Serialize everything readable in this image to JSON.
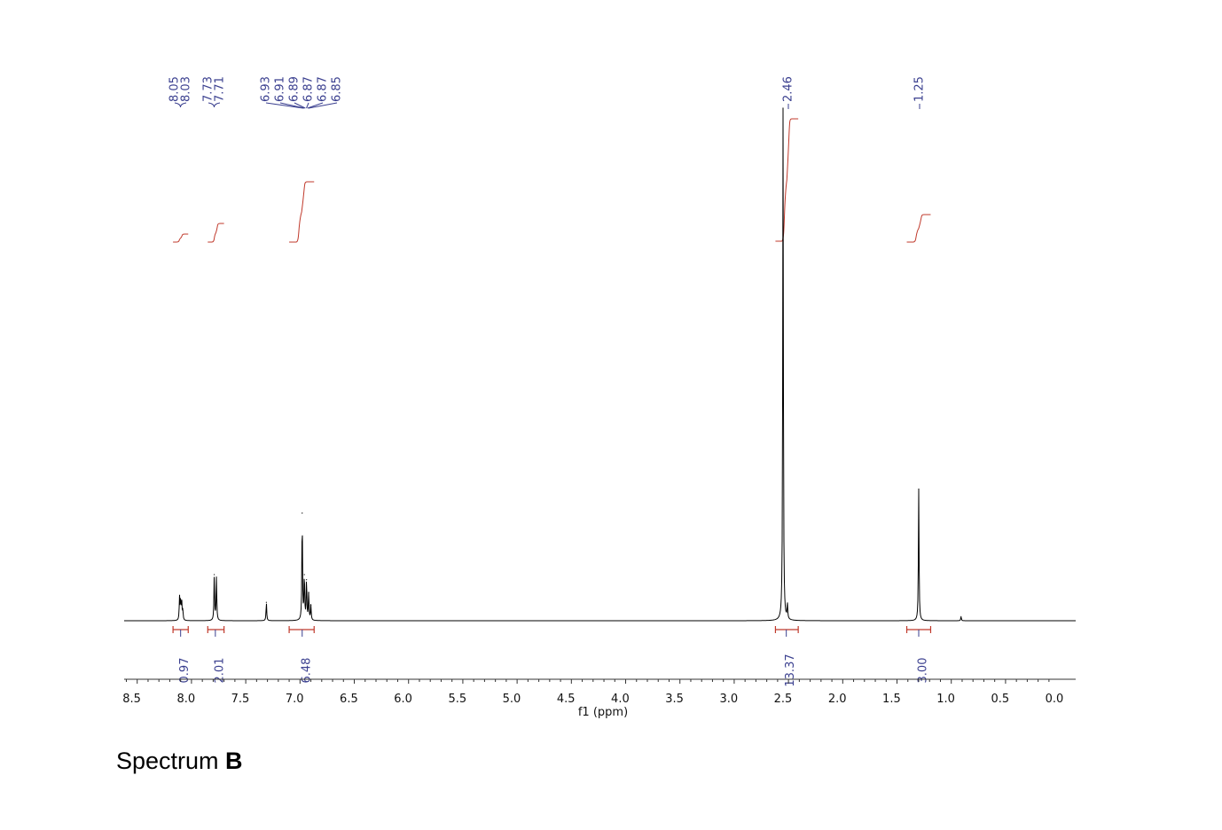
{
  "caption": {
    "prefix": "Spectrum ",
    "letter": "B"
  },
  "chart_data": {
    "type": "line",
    "xlabel": "f1 (ppm)",
    "xlim": [
      8.55,
      -0.05
    ],
    "x_reversed": true,
    "ticks": [
      "8.5",
      "8.0",
      "7.5",
      "7.0",
      "6.5",
      "6.0",
      "5.5",
      "5.0",
      "4.5",
      "4.0",
      "3.5",
      "3.0",
      "2.5",
      "2.0",
      "1.5",
      "1.0",
      "0.5",
      "0.0"
    ],
    "grid": false,
    "peak_groups": [
      {
        "labels": [
          "8.05",
          "8.03"
        ],
        "shifts": [
          8.05,
          8.03
        ],
        "bracket": "curly"
      },
      {
        "labels": [
          "7.73",
          "7.71"
        ],
        "shifts": [
          7.73,
          7.71
        ],
        "bracket": "curly"
      },
      {
        "labels": [
          "6.93",
          "6.91",
          "6.89",
          "6.87",
          "6.87",
          "6.85"
        ],
        "shifts": [
          6.93,
          6.91,
          6.89,
          6.87,
          6.87,
          6.85
        ],
        "bracket": "fan"
      },
      {
        "labels": [
          "2.46"
        ],
        "shifts": [
          2.46
        ],
        "bracket": "single"
      },
      {
        "labels": [
          "1.25"
        ],
        "shifts": [
          1.25
        ],
        "bracket": "single"
      }
    ],
    "integrals": [
      {
        "from": 8.12,
        "to": 7.98,
        "value": "0.97",
        "center": 8.05
      },
      {
        "from": 7.8,
        "to": 7.65,
        "value": "2.01",
        "center": 7.73
      },
      {
        "from": 7.05,
        "to": 6.82,
        "value": "6.48",
        "center": 6.93
      },
      {
        "from": 2.57,
        "to": 2.36,
        "value": "13.37",
        "center": 2.47
      },
      {
        "from": 1.36,
        "to": 1.14,
        "value": "3.00",
        "center": 1.25
      }
    ],
    "peaks": [
      {
        "ppm": 8.06,
        "height": 0.045
      },
      {
        "ppm": 8.05,
        "height": 0.04
      },
      {
        "ppm": 8.04,
        "height": 0.035
      },
      {
        "ppm": 8.03,
        "height": 0.02
      },
      {
        "ppm": 7.74,
        "height": 0.09
      },
      {
        "ppm": 7.72,
        "height": 0.085
      },
      {
        "ppm": 7.26,
        "height": 0.036
      },
      {
        "ppm": 6.93,
        "height": 0.21
      },
      {
        "ppm": 6.91,
        "height": 0.09
      },
      {
        "ppm": 6.89,
        "height": 0.08
      },
      {
        "ppm": 6.87,
        "height": 0.055
      },
      {
        "ppm": 6.85,
        "height": 0.03
      },
      {
        "ppm": 2.5,
        "height": 1.0
      },
      {
        "ppm": 2.46,
        "height": 0.03
      },
      {
        "ppm": 1.25,
        "height": 0.257
      },
      {
        "ppm": 0.86,
        "height": 0.008
      }
    ]
  },
  "colors": {
    "spectrum": "#000000",
    "integral": "#c0392b",
    "labels": "#3a3f8f"
  }
}
